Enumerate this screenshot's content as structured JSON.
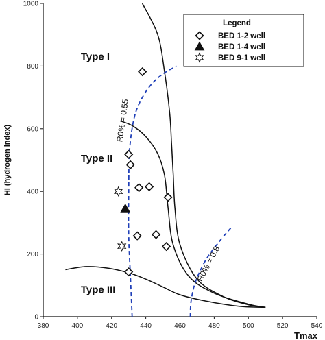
{
  "chart_data": {
    "type": "scatter",
    "xlabel": "Tmax",
    "ylabel": "HI (hydrogen index)",
    "xlim": [
      380,
      540
    ],
    "ylim": [
      0,
      1000
    ],
    "x_ticks": [
      "380",
      "400",
      "420",
      "440",
      "460",
      "480",
      "500",
      "520",
      "540"
    ],
    "y_ticks": [
      "0",
      "200",
      "400",
      "600",
      "800",
      "1000"
    ],
    "grid": false,
    "legend": {
      "title": "Legend",
      "placement": "top-right",
      "entries": [
        "BED 1-2 well",
        "BED 1-4 well",
        "BED 9-1 well"
      ]
    },
    "series": [
      {
        "name": "BED 1-2 well",
        "marker": "diamond-open",
        "points": [
          [
            438,
            782
          ],
          [
            430,
            518
          ],
          [
            431,
            485
          ],
          [
            436,
            412
          ],
          [
            442,
            415
          ],
          [
            453,
            381
          ],
          [
            435,
            258
          ],
          [
            446,
            262
          ],
          [
            452,
            224
          ],
          [
            430,
            143
          ]
        ]
      },
      {
        "name": "BED 1-4 well",
        "marker": "triangle-filled",
        "points": [
          [
            428,
            345
          ]
        ]
      },
      {
        "name": "BED 9-1 well",
        "marker": "star-open",
        "points": [
          [
            424,
            400
          ],
          [
            426,
            225
          ]
        ]
      }
    ],
    "boundaries": [
      {
        "id": "type-i-boundary",
        "points": [
          [
            438,
            1000
          ],
          [
            447,
            900
          ],
          [
            451,
            780
          ],
          [
            454,
            650
          ],
          [
            455,
            560
          ],
          [
            456,
            460
          ],
          [
            457,
            350
          ],
          [
            460,
            230
          ],
          [
            470,
            120
          ],
          [
            485,
            65
          ],
          [
            500,
            38
          ],
          [
            510,
            30
          ]
        ]
      },
      {
        "id": "type-ii-boundary",
        "points": [
          [
            425,
            625
          ],
          [
            432,
            610
          ],
          [
            440,
            575
          ],
          [
            447,
            520
          ],
          [
            451,
            450
          ],
          [
            453,
            350
          ],
          [
            456,
            230
          ],
          [
            465,
            130
          ],
          [
            480,
            75
          ],
          [
            500,
            40
          ],
          [
            510,
            30
          ]
        ]
      },
      {
        "id": "type-iii-boundary",
        "points": [
          [
            393,
            150
          ],
          [
            405,
            160
          ],
          [
            418,
            155
          ],
          [
            430,
            140
          ],
          [
            440,
            120
          ],
          [
            450,
            95
          ],
          [
            460,
            70
          ],
          [
            475,
            50
          ],
          [
            495,
            33
          ],
          [
            510,
            30
          ]
        ]
      }
    ],
    "ro_lines": [
      {
        "label": "R0% = 0.55",
        "points": [
          [
            432,
            0
          ],
          [
            431,
            130
          ],
          [
            430,
            260
          ],
          [
            430,
            400
          ],
          [
            430.5,
            530
          ],
          [
            433,
            630
          ],
          [
            437,
            690
          ],
          [
            443,
            740
          ],
          [
            450,
            775
          ],
          [
            458,
            800
          ]
        ]
      },
      {
        "label": "R0% = 0.8",
        "points": [
          [
            466,
            0
          ],
          [
            466.5,
            50
          ],
          [
            469,
            110
          ],
          [
            475,
            180
          ],
          [
            483,
            240
          ],
          [
            490,
            285
          ]
        ]
      }
    ],
    "regions": [
      {
        "label": "Type I",
        "x": 402,
        "y": 820
      },
      {
        "label": "Type II",
        "x": 402,
        "y": 495
      },
      {
        "label": "Type III",
        "x": 402,
        "y": 75
      }
    ]
  }
}
